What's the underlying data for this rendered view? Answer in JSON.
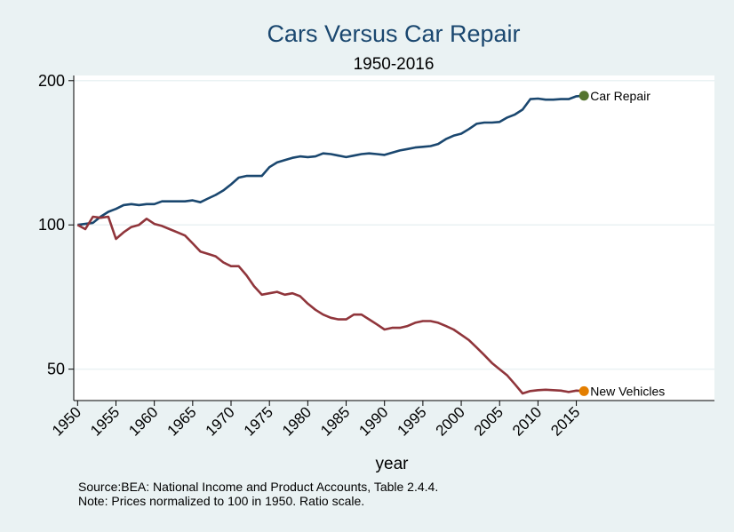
{
  "chart_data": {
    "type": "line",
    "title": "Cars Versus Car Repair",
    "subtitle": "1950-2016",
    "xlabel": "year",
    "ylabel": "",
    "yscale": "log",
    "ylim": [
      43,
      205
    ],
    "xlim": [
      1949.5,
      2033
    ],
    "yticks": [
      50,
      100,
      200
    ],
    "ytick_labels": [
      "50",
      "100",
      "200"
    ],
    "xticks": [
      1950,
      1955,
      1960,
      1965,
      1970,
      1975,
      1980,
      1985,
      1990,
      1995,
      2000,
      2005,
      2010,
      2015
    ],
    "xtick_labels": [
      "1950",
      "1955",
      "1960",
      "1965",
      "1970",
      "1975",
      "1980",
      "1985",
      "1990",
      "1995",
      "2000",
      "2005",
      "2010",
      "2015"
    ],
    "grid": true,
    "legend": "end-of-line labels",
    "series": [
      {
        "name": "Car Repair",
        "color": "#1a476f",
        "marker_color": "#55752f",
        "end_label": "Car Repair",
        "x": [
          1950,
          1951,
          1952,
          1953,
          1954,
          1955,
          1956,
          1957,
          1958,
          1959,
          1960,
          1961,
          1962,
          1963,
          1964,
          1965,
          1966,
          1967,
          1968,
          1969,
          1970,
          1971,
          1972,
          1973,
          1974,
          1975,
          1976,
          1977,
          1978,
          1979,
          1980,
          1981,
          1982,
          1983,
          1984,
          1985,
          1986,
          1987,
          1988,
          1989,
          1990,
          1991,
          1992,
          1993,
          1994,
          1995,
          1996,
          1997,
          1998,
          1999,
          2000,
          2001,
          2002,
          2003,
          2004,
          2005,
          2006,
          2007,
          2008,
          2009,
          2010,
          2011,
          2012,
          2013,
          2014,
          2015,
          2016
        ],
        "values": [
          100,
          100.5,
          101,
          104,
          106.5,
          108,
          110,
          110.5,
          110,
          110.5,
          110.5,
          112,
          112,
          112,
          112,
          112.5,
          111.5,
          113.5,
          115.5,
          118,
          121.5,
          125.5,
          126.5,
          126.5,
          126.5,
          132,
          135,
          136.5,
          138,
          139,
          138.5,
          139,
          141,
          140.5,
          139.5,
          138.5,
          139.5,
          140.5,
          141,
          140.5,
          140,
          141.5,
          143,
          144,
          145,
          145.5,
          146,
          147.5,
          151,
          153.5,
          155,
          158.5,
          162.5,
          163.5,
          163.5,
          164,
          167.5,
          170,
          174,
          183,
          183.5,
          182.5,
          182.5,
          183,
          183,
          185.5,
          186
        ]
      },
      {
        "name": "New Vehicles",
        "color": "#90353b",
        "marker_color": "#e37e00",
        "end_label": "New Vehicles",
        "x": [
          1950,
          1951,
          1952,
          1953,
          1954,
          1955,
          1956,
          1957,
          1958,
          1959,
          1960,
          1961,
          1962,
          1963,
          1964,
          1965,
          1966,
          1967,
          1968,
          1969,
          1970,
          1971,
          1972,
          1973,
          1974,
          1975,
          1976,
          1977,
          1978,
          1979,
          1980,
          1981,
          1982,
          1983,
          1984,
          1985,
          1986,
          1987,
          1988,
          1989,
          1990,
          1991,
          1992,
          1993,
          1994,
          1995,
          1996,
          1997,
          1998,
          1999,
          2000,
          2001,
          2002,
          2003,
          2004,
          2005,
          2006,
          2007,
          2008,
          2009,
          2010,
          2011,
          2012,
          2013,
          2014,
          2015,
          2016
        ],
        "values": [
          100,
          98,
          104,
          103.5,
          104,
          93.5,
          96.5,
          99,
          100,
          103,
          100.5,
          99.5,
          98,
          96.5,
          95,
          91.5,
          88,
          87,
          86,
          83.5,
          82,
          82,
          78.5,
          74.5,
          71.5,
          72,
          72.5,
          71.5,
          72,
          71,
          68.5,
          66.5,
          65,
          64,
          63.5,
          63.5,
          65,
          65,
          63.5,
          62,
          60.5,
          61,
          61,
          61.5,
          62.5,
          63,
          63,
          62.5,
          61.5,
          60.5,
          59,
          57.5,
          55.5,
          53.5,
          51.5,
          50,
          48.5,
          46.5,
          44.5,
          45,
          45.2,
          45.3,
          45.2,
          45.1,
          44.8,
          45.1,
          45
        ]
      }
    ]
  },
  "notes": {
    "source": "Source:BEA: National Income and Product Accounts, Table 2.4.4.",
    "note": "Note: Prices normalized to 100 in 1950. Ratio scale."
  }
}
